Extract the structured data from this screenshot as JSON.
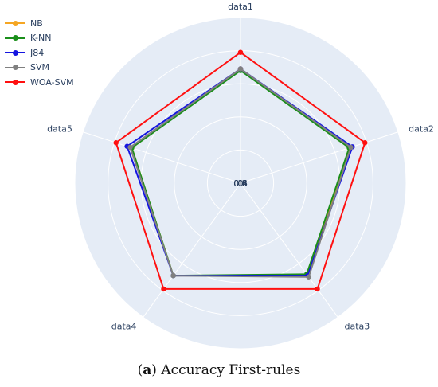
{
  "chart_data": {
    "type": "radar",
    "axes": [
      "data1",
      "data2",
      "data3",
      "data4",
      "data5"
    ],
    "radial_ticks": [
      "0",
      "0.2",
      "0.4",
      "0.6",
      "0.8",
      "1"
    ],
    "radial_range": [
      0,
      1
    ],
    "series": [
      {
        "name": "NB",
        "color": "#f5a623",
        "values": [
          0.69,
          0.69,
          0.69,
          0.69,
          0.69
        ]
      },
      {
        "name": "K-NN",
        "color": "#1a8f1a",
        "values": [
          0.68,
          0.69,
          0.68,
          0.69,
          0.69
        ]
      },
      {
        "name": "J84",
        "color": "#1515e0",
        "values": [
          0.69,
          0.71,
          0.69,
          0.69,
          0.72
        ]
      },
      {
        "name": "SVM",
        "color": "#808080",
        "values": [
          0.69,
          0.7,
          0.7,
          0.69,
          0.7
        ]
      },
      {
        "name": "WOA-SVM",
        "color": "#ff1010",
        "values": [
          0.79,
          0.79,
          0.79,
          0.79,
          0.79
        ]
      }
    ],
    "legend_position": "top-left",
    "grid": true,
    "background_color": "#e5ecf6"
  },
  "caption": {
    "prefix": "(",
    "label": "a",
    "suffix": ") Accuracy First-rules"
  }
}
